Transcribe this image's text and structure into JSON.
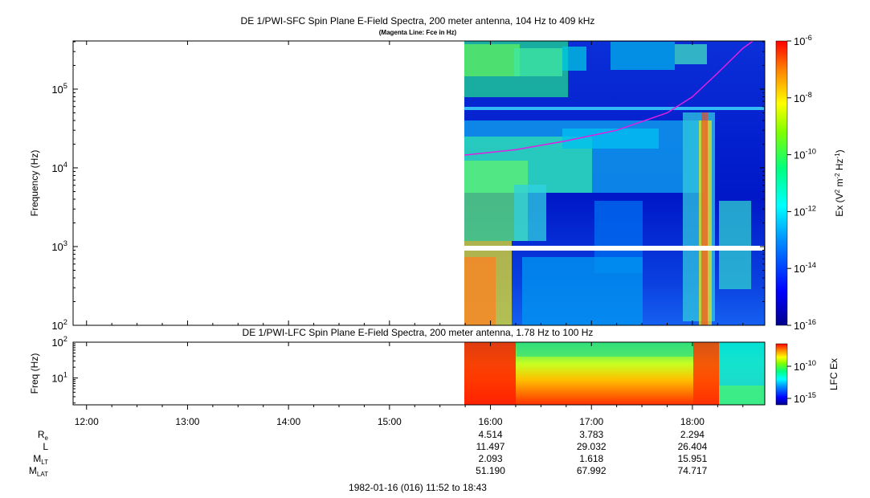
{
  "chart_data": [
    {
      "type": "heatmap",
      "title": "DE 1/PWI-SFC  Spin Plane E-Field Spectra, 200 meter antenna, 104 Hz to 409 kHz",
      "subtitle": "(Magenta Line: Fce in Hz)",
      "ylabel": "Frequency (Hz)",
      "yscale": "log",
      "ylim": [
        100,
        409000
      ],
      "yticks": [
        {
          "base": "10",
          "exp": "2"
        },
        {
          "base": "10",
          "exp": "3"
        },
        {
          "base": "10",
          "exp": "4"
        },
        {
          "base": "10",
          "exp": "5"
        }
      ],
      "colorbar": {
        "label_prefix": "Ex (V",
        "label_sup1": "2",
        "label_mid1": " m",
        "label_sup2": "-2",
        "label_mid2": " Hz",
        "label_sup3": "-1",
        "label_suffix": ")",
        "scale": "log",
        "range": [
          1e-16,
          1e-06
        ],
        "ticks": [
          {
            "base": "10",
            "exp": "-6"
          },
          {
            "base": "10",
            "exp": "-8"
          },
          {
            "base": "10",
            "exp": "-10"
          },
          {
            "base": "10",
            "exp": "-12"
          },
          {
            "base": "10",
            "exp": "-14"
          },
          {
            "base": "10",
            "exp": "-16"
          }
        ]
      },
      "data_start": "15:44",
      "fce_line": {
        "color": "#e020e0",
        "points": [
          {
            "t": "15:44",
            "f": 14500
          },
          {
            "t": "16:15",
            "f": 17000
          },
          {
            "t": "16:45",
            "f": 22000
          },
          {
            "t": "17:15",
            "f": 30000
          },
          {
            "t": "17:45",
            "f": 50000
          },
          {
            "t": "18:00",
            "f": 80000
          },
          {
            "t": "18:15",
            "f": 160000
          },
          {
            "t": "18:30",
            "f": 330000
          },
          {
            "t": "18:36",
            "f": 409000
          }
        ]
      }
    },
    {
      "type": "heatmap",
      "title": "DE 1/PWI-LFC  Spin Plane E-Field Spectra, 200 meter antenna, 1.78 Hz to 100 Hz",
      "ylabel": "Freq (Hz)",
      "yscale": "log",
      "ylim": [
        1.78,
        100
      ],
      "yticks": [
        {
          "base": "10",
          "exp": "1"
        },
        {
          "base": "10",
          "exp": "2"
        }
      ],
      "colorbar": {
        "label": "LFC Ex",
        "scale": "log",
        "ticks": [
          {
            "base": "10",
            "exp": "-10"
          },
          {
            "base": "10",
            "exp": "-15"
          }
        ]
      }
    }
  ],
  "time_axis": {
    "start": "11:52",
    "end": "18:43",
    "tick_labels": [
      "12:00",
      "13:00",
      "14:00",
      "15:00",
      "16:00",
      "17:00",
      "18:00"
    ]
  },
  "ephemeris": [
    {
      "label": "R",
      "sub": "e",
      "values": [
        "4.514",
        "3.783",
        "2.294"
      ]
    },
    {
      "label": "L",
      "sub": "",
      "values": [
        "11.497",
        "29.032",
        "26.404"
      ]
    },
    {
      "label": "M",
      "sub": "LT",
      "values": [
        "2.093",
        "1.618",
        "15.951"
      ]
    },
    {
      "label": "M",
      "sub": "LAT",
      "values": [
        "51.190",
        "67.992",
        "74.717"
      ]
    }
  ],
  "footer": "1982-01-16 (016) 11:52 to 18:43"
}
